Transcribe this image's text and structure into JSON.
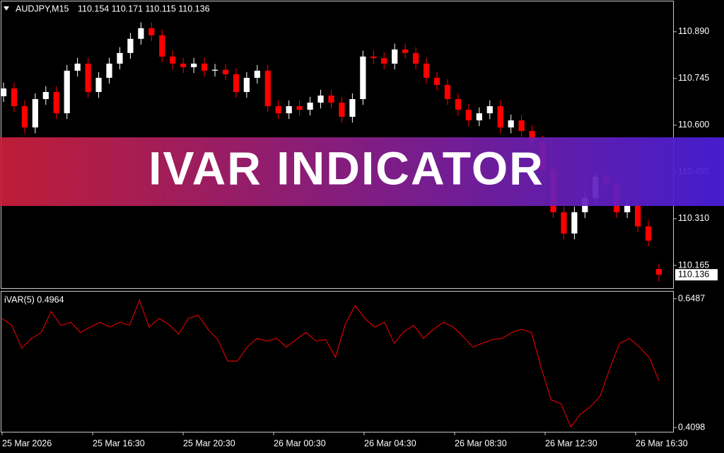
{
  "header": {
    "symbol": "AUDJPY,M15",
    "ohlc": "110.154 110.171 110.115 110.136"
  },
  "banner": "IVAR INDICATOR",
  "time_labels": [
    "25 Mar 2026",
    "25 Mar 16:30",
    "25 Mar 20:30",
    "26 Mar 00:30",
    "26 Mar 04:30",
    "26 Mar 08:30",
    "26 Mar 12:30",
    "26 Mar 16:30"
  ],
  "chart_data": [
    {
      "type": "candlestick",
      "up_color": "#ffffff",
      "down_color": "#ff0000",
      "ylim": [
        110.0925,
        110.984
      ],
      "yticks": [
        {
          "value": 110.89,
          "label": "110.890"
        },
        110.745,
        {
          "value": 110.6,
          "label": "110.600"
        },
        110.455,
        {
          "value": 110.31,
          "label": "110.310"
        },
        110.165
      ],
      "open": [
        110.69,
        110.714,
        110.659,
        110.593,
        110.681,
        110.703,
        110.637,
        110.769,
        110.791,
        110.703,
        110.747,
        110.791,
        110.824,
        110.868,
        110.901,
        110.879,
        110.813,
        110.791,
        110.78,
        110.791,
        110.769,
        110.772,
        110.758,
        110.703,
        110.747,
        110.769,
        110.659,
        110.637,
        110.659,
        110.648,
        110.67,
        110.692,
        110.67,
        110.626,
        110.681,
        110.813,
        110.808,
        110.791,
        110.835,
        110.824,
        110.791,
        110.747,
        110.725,
        110.681,
        110.648,
        110.615,
        110.637,
        110.659,
        110.593,
        110.615,
        110.582,
        110.549,
        110.462,
        110.33,
        110.264,
        110.33,
        110.374,
        110.44,
        110.418,
        110.33,
        110.352,
        110.286,
        110.154
      ],
      "high": [
        110.732,
        110.732,
        110.677,
        110.699,
        110.721,
        110.721,
        110.787,
        110.809,
        110.809,
        110.765,
        110.809,
        110.842,
        110.886,
        110.919,
        110.919,
        110.897,
        110.831,
        110.809,
        110.809,
        110.809,
        110.79,
        110.79,
        110.776,
        110.765,
        110.787,
        110.787,
        110.677,
        110.677,
        110.677,
        110.688,
        110.71,
        110.71,
        110.688,
        110.699,
        110.831,
        110.831,
        110.826,
        110.853,
        110.853,
        110.842,
        110.809,
        110.765,
        110.743,
        110.699,
        110.666,
        110.655,
        110.677,
        110.677,
        110.633,
        110.633,
        110.6,
        110.567,
        110.48,
        110.348,
        110.348,
        110.392,
        110.458,
        110.458,
        110.436,
        110.37,
        110.37,
        110.304,
        110.171
      ],
      "low": [
        110.672,
        110.641,
        110.575,
        110.575,
        110.663,
        110.619,
        110.619,
        110.751,
        110.685,
        110.685,
        110.729,
        110.773,
        110.806,
        110.85,
        110.861,
        110.795,
        110.773,
        110.762,
        110.762,
        110.751,
        110.751,
        110.74,
        110.685,
        110.685,
        110.729,
        110.641,
        110.619,
        110.619,
        110.63,
        110.63,
        110.652,
        110.652,
        110.608,
        110.608,
        110.663,
        110.79,
        110.773,
        110.773,
        110.806,
        110.773,
        110.729,
        110.707,
        110.663,
        110.63,
        110.597,
        110.597,
        110.619,
        110.575,
        110.575,
        110.564,
        110.531,
        110.444,
        110.312,
        110.246,
        110.246,
        110.312,
        110.356,
        110.4,
        110.312,
        110.312,
        110.268,
        110.224,
        110.115
      ],
      "close": [
        110.714,
        110.659,
        110.593,
        110.681,
        110.703,
        110.637,
        110.769,
        110.791,
        110.703,
        110.747,
        110.791,
        110.824,
        110.868,
        110.901,
        110.879,
        110.813,
        110.791,
        110.78,
        110.791,
        110.769,
        110.772,
        110.758,
        110.703,
        110.747,
        110.769,
        110.659,
        110.637,
        110.659,
        110.648,
        110.67,
        110.692,
        110.67,
        110.626,
        110.681,
        110.813,
        110.808,
        110.791,
        110.835,
        110.824,
        110.791,
        110.747,
        110.725,
        110.681,
        110.648,
        110.615,
        110.637,
        110.659,
        110.593,
        110.615,
        110.582,
        110.549,
        110.462,
        110.33,
        110.264,
        110.33,
        110.374,
        110.44,
        110.418,
        110.33,
        110.352,
        110.286,
        110.242,
        110.136
      ]
    },
    {
      "type": "line",
      "title": "iVAR(5) 0.4964",
      "color": "#ff0000",
      "ylim": [
        0.4019,
        0.6618
      ],
      "yticks": [
        0.6487,
        0.4098
      ],
      "values": [
        0.612,
        0.599,
        0.557,
        0.575,
        0.586,
        0.625,
        0.599,
        0.605,
        0.586,
        0.596,
        0.605,
        0.596,
        0.605,
        0.599,
        0.646,
        0.596,
        0.612,
        0.601,
        0.583,
        0.612,
        0.618,
        0.592,
        0.573,
        0.533,
        0.533,
        0.559,
        0.575,
        0.57,
        0.575,
        0.559,
        0.573,
        0.586,
        0.57,
        0.573,
        0.54,
        0.601,
        0.636,
        0.612,
        0.596,
        0.605,
        0.566,
        0.588,
        0.599,
        0.575,
        0.592,
        0.605,
        0.596,
        0.579,
        0.559,
        0.566,
        0.573,
        0.575,
        0.586,
        0.592,
        0.586,
        0.52,
        0.461,
        0.454,
        0.411,
        0.435,
        0.448,
        0.468,
        0.52,
        0.566,
        0.575,
        0.559,
        0.54,
        0.4964
      ]
    }
  ]
}
